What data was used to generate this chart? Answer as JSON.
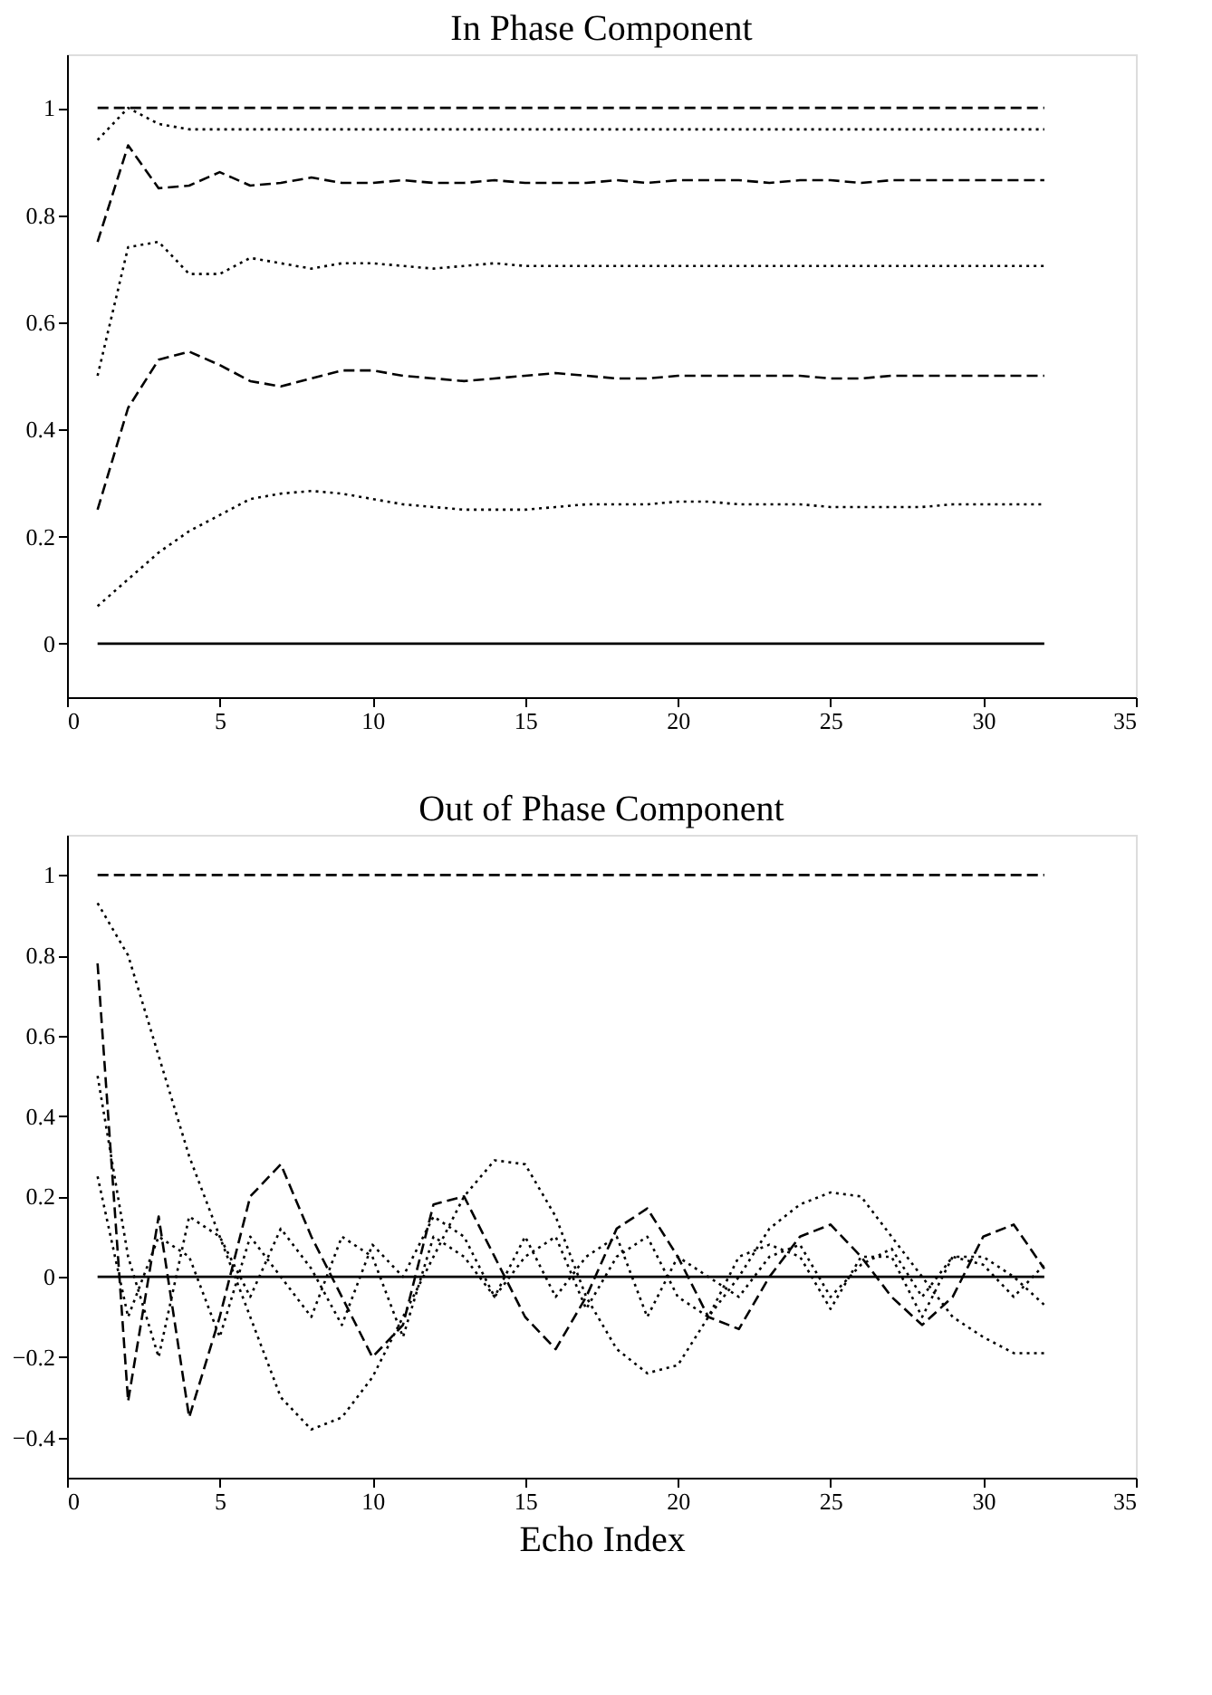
{
  "chart_data": [
    {
      "type": "line",
      "title": "In Phase Component",
      "x": [
        1,
        2,
        3,
        4,
        5,
        6,
        7,
        8,
        9,
        10,
        11,
        12,
        13,
        14,
        15,
        16,
        17,
        18,
        19,
        20,
        21,
        22,
        23,
        24,
        25,
        26,
        27,
        28,
        29,
        30,
        31,
        32
      ],
      "xlim": [
        0,
        35
      ],
      "xticks": [
        0,
        5,
        10,
        15,
        20,
        25,
        30,
        35
      ],
      "ylim": [
        -0.1,
        1.1
      ],
      "yticks": [
        0,
        0.2,
        0.4,
        0.6,
        0.8,
        1
      ],
      "grid": false,
      "series": [
        {
          "color": "#000000",
          "line_style": "dashed",
          "values": [
            1,
            1,
            1,
            1,
            1,
            1,
            1,
            1,
            1,
            1,
            1,
            1,
            1,
            1,
            1,
            1,
            1,
            1,
            1,
            1,
            1,
            1,
            1,
            1,
            1,
            1,
            1,
            1,
            1,
            1,
            1,
            1
          ]
        },
        {
          "color": "#000000",
          "line_style": "dotted",
          "values": [
            0.94,
            1.0,
            0.97,
            0.96,
            0.96,
            0.96,
            0.96,
            0.96,
            0.96,
            0.96,
            0.96,
            0.96,
            0.96,
            0.96,
            0.96,
            0.96,
            0.96,
            0.96,
            0.96,
            0.96,
            0.96,
            0.96,
            0.96,
            0.96,
            0.96,
            0.96,
            0.96,
            0.96,
            0.96,
            0.96,
            0.96,
            0.96
          ]
        },
        {
          "color": "#000000",
          "line_style": "dashed",
          "values": [
            0.75,
            0.93,
            0.85,
            0.855,
            0.88,
            0.855,
            0.86,
            0.87,
            0.86,
            0.86,
            0.865,
            0.86,
            0.86,
            0.865,
            0.86,
            0.86,
            0.86,
            0.865,
            0.86,
            0.865,
            0.865,
            0.865,
            0.86,
            0.865,
            0.865,
            0.86,
            0.865,
            0.865,
            0.865,
            0.865,
            0.865,
            0.865
          ]
        },
        {
          "color": "#000000",
          "line_style": "dotted",
          "values": [
            0.5,
            0.74,
            0.75,
            0.69,
            0.69,
            0.72,
            0.71,
            0.7,
            0.71,
            0.71,
            0.705,
            0.7,
            0.705,
            0.71,
            0.705,
            0.705,
            0.705,
            0.705,
            0.705,
            0.705,
            0.705,
            0.705,
            0.705,
            0.705,
            0.705,
            0.705,
            0.705,
            0.705,
            0.705,
            0.705,
            0.705,
            0.705
          ]
        },
        {
          "color": "#000000",
          "line_style": "dashed",
          "values": [
            0.25,
            0.44,
            0.53,
            0.545,
            0.52,
            0.49,
            0.48,
            0.495,
            0.51,
            0.51,
            0.5,
            0.495,
            0.49,
            0.495,
            0.5,
            0.505,
            0.5,
            0.495,
            0.495,
            0.5,
            0.5,
            0.5,
            0.5,
            0.5,
            0.495,
            0.495,
            0.5,
            0.5,
            0.5,
            0.5,
            0.5,
            0.5
          ]
        },
        {
          "color": "#000000",
          "line_style": "dotted",
          "values": [
            0.07,
            0.12,
            0.17,
            0.21,
            0.24,
            0.27,
            0.28,
            0.285,
            0.28,
            0.27,
            0.26,
            0.255,
            0.25,
            0.25,
            0.25,
            0.255,
            0.26,
            0.26,
            0.26,
            0.265,
            0.265,
            0.26,
            0.26,
            0.26,
            0.255,
            0.255,
            0.255,
            0.255,
            0.26,
            0.26,
            0.26,
            0.26
          ]
        },
        {
          "color": "#000000",
          "line_style": "solid",
          "values": [
            0,
            0,
            0,
            0,
            0,
            0,
            0,
            0,
            0,
            0,
            0,
            0,
            0,
            0,
            0,
            0,
            0,
            0,
            0,
            0,
            0,
            0,
            0,
            0,
            0,
            0,
            0,
            0,
            0,
            0,
            0,
            0
          ]
        }
      ]
    },
    {
      "type": "line",
      "title": "Out of Phase Component",
      "xlabel": "Echo Index",
      "x": [
        1,
        2,
        3,
        4,
        5,
        6,
        7,
        8,
        9,
        10,
        11,
        12,
        13,
        14,
        15,
        16,
        17,
        18,
        19,
        20,
        21,
        22,
        23,
        24,
        25,
        26,
        27,
        28,
        29,
        30,
        31,
        32
      ],
      "xlim": [
        0,
        35
      ],
      "xticks": [
        0,
        5,
        10,
        15,
        20,
        25,
        30,
        35
      ],
      "ylim": [
        -0.5,
        1.1
      ],
      "yticks": [
        -0.4,
        -0.2,
        0,
        0.2,
        0.4,
        0.6,
        0.8,
        1
      ],
      "grid": false,
      "series": [
        {
          "color": "#000000",
          "line_style": "dashed",
          "values": [
            1,
            1,
            1,
            1,
            1,
            1,
            1,
            1,
            1,
            1,
            1,
            1,
            1,
            1,
            1,
            1,
            1,
            1,
            1,
            1,
            1,
            1,
            1,
            1,
            1,
            1,
            1,
            1,
            1,
            1,
            1,
            1
          ]
        },
        {
          "color": "#000000",
          "line_style": "dotted",
          "values": [
            0.93,
            0.8,
            0.55,
            0.3,
            0.1,
            -0.1,
            -0.3,
            -0.38,
            -0.35,
            -0.25,
            -0.1,
            0.05,
            0.2,
            0.29,
            0.28,
            0.15,
            -0.05,
            -0.18,
            -0.24,
            -0.22,
            -0.1,
            0.0,
            0.12,
            0.18,
            0.21,
            0.2,
            0.1,
            0.0,
            -0.1,
            -0.15,
            -0.19,
            -0.19
          ]
        },
        {
          "color": "#000000",
          "line_style": "dashed",
          "values": [
            0.78,
            -0.31,
            0.15,
            -0.35,
            -0.1,
            0.2,
            0.28,
            0.1,
            -0.05,
            -0.2,
            -0.12,
            0.18,
            0.2,
            0.05,
            -0.1,
            -0.18,
            -0.05,
            0.12,
            0.17,
            0.05,
            -0.1,
            -0.13,
            0.0,
            0.1,
            0.13,
            0.05,
            -0.05,
            -0.12,
            -0.05,
            0.1,
            0.13,
            0.02
          ]
        },
        {
          "color": "#000000",
          "line_style": "dotted",
          "values": [
            0.5,
            0.05,
            -0.2,
            0.15,
            0.1,
            -0.05,
            0.12,
            0.02,
            -0.12,
            0.08,
            0.0,
            0.15,
            0.1,
            -0.05,
            0.05,
            0.1,
            -0.08,
            0.05,
            0.1,
            -0.05,
            -0.1,
            0.05,
            0.08,
            0.05,
            -0.08,
            0.05,
            0.05,
            -0.1,
            0.05,
            0.05,
            0.0,
            -0.07
          ]
        },
        {
          "color": "#000000",
          "line_style": "dotted",
          "values": [
            0.25,
            -0.1,
            0.1,
            0.05,
            -0.15,
            0.1,
            0.0,
            -0.1,
            0.1,
            0.05,
            -0.15,
            0.1,
            0.05,
            -0.05,
            0.1,
            -0.05,
            0.05,
            0.1,
            -0.1,
            0.05,
            0.0,
            -0.05,
            0.05,
            0.08,
            -0.05,
            0.03,
            0.07,
            -0.05,
            0.05,
            0.03,
            -0.05,
            0.03
          ]
        },
        {
          "color": "#000000",
          "line_style": "solid",
          "values": [
            0,
            0,
            0,
            0,
            0,
            0,
            0,
            0,
            0,
            0,
            0,
            0,
            0,
            0,
            0,
            0,
            0,
            0,
            0,
            0,
            0,
            0,
            0,
            0,
            0,
            0,
            0,
            0,
            0,
            0,
            0,
            0
          ]
        }
      ]
    }
  ]
}
